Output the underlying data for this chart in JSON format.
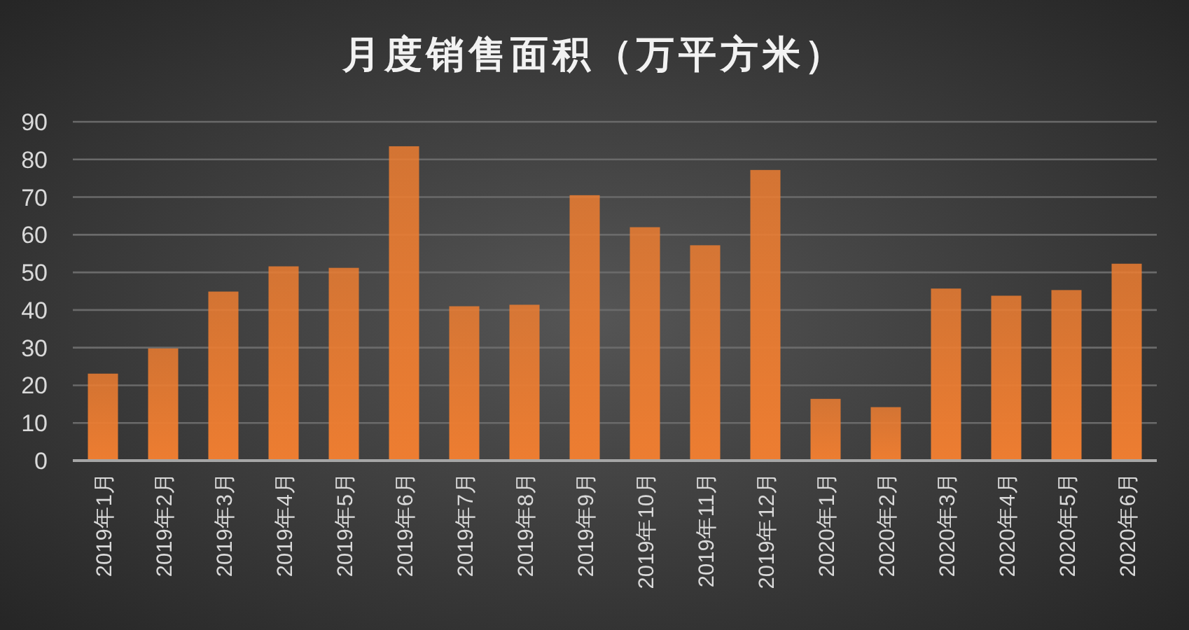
{
  "chart_data": {
    "type": "bar",
    "title": "月度销售面积（万平方米）",
    "categories": [
      "2019年1月",
      "2019年2月",
      "2019年3月",
      "2019年4月",
      "2019年5月",
      "2019年6月",
      "2019年7月",
      "2019年8月",
      "2019年9月",
      "2019年10月",
      "2019年11月",
      "2019年12月",
      "2020年1月",
      "2020年2月",
      "2020年3月",
      "2020年4月",
      "2020年5月",
      "2020年6月"
    ],
    "values": [
      23.1,
      29.8,
      44.9,
      51.6,
      51.2,
      83.5,
      41.0,
      41.4,
      70.5,
      62.0,
      57.2,
      77.2,
      16.4,
      14.2,
      45.7,
      43.8,
      45.3,
      52.3
    ],
    "color": "#ed7d31",
    "ylim": [
      0,
      90
    ],
    "yticks": [
      0,
      10,
      20,
      30,
      40,
      50,
      60,
      70,
      80,
      90
    ],
    "grid": "y"
  }
}
